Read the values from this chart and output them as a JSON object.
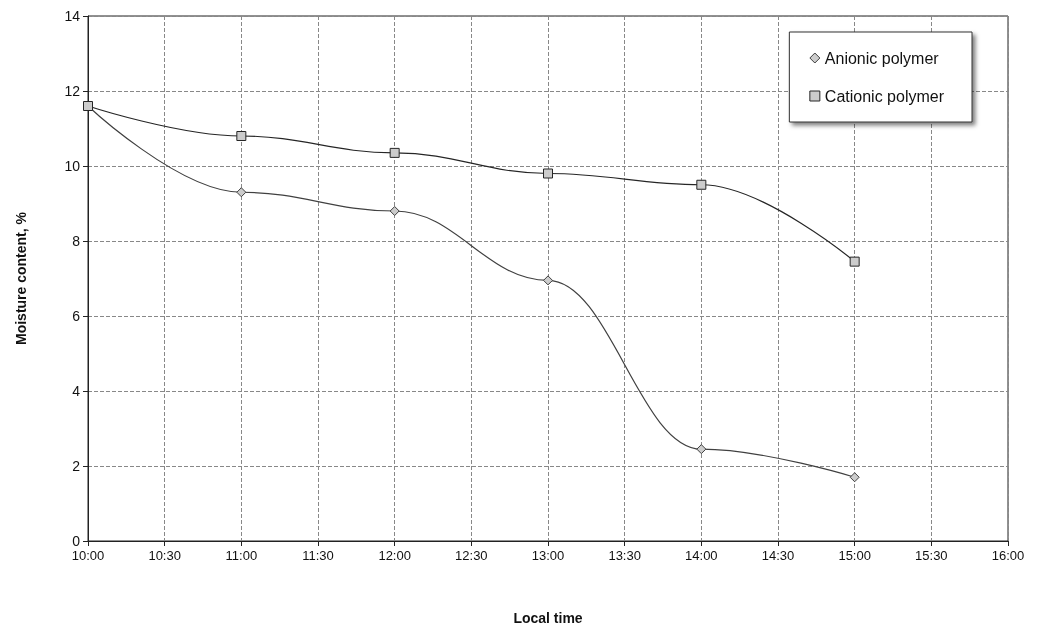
{
  "chart_data": {
    "type": "line",
    "xlabel": "Local time",
    "ylabel": "Moisture content, %",
    "x": [
      10,
      11,
      12,
      13,
      14,
      15
    ],
    "series": [
      {
        "name": "Anionic polymer",
        "color": "#404040",
        "marker": "diamond",
        "values": [
          11.6,
          9.3,
          8.8,
          6.95,
          2.45,
          1.7
        ]
      },
      {
        "name": "Cationic polymer",
        "color": "#262626",
        "marker": "square",
        "values": [
          11.6,
          10.8,
          10.35,
          9.8,
          9.5,
          7.45
        ]
      }
    ],
    "xlim": [
      10,
      16
    ],
    "xticks": [
      {
        "value": 10,
        "label": "10:00"
      },
      {
        "value": 10.5,
        "label": "10:30"
      },
      {
        "value": 11,
        "label": "11:00"
      },
      {
        "value": 11.5,
        "label": "11:30"
      },
      {
        "value": 12,
        "label": "12:00"
      },
      {
        "value": 12.5,
        "label": "12:30"
      },
      {
        "value": 13,
        "label": "13:00"
      },
      {
        "value": 13.5,
        "label": "13:30"
      },
      {
        "value": 14,
        "label": "14:00"
      },
      {
        "value": 14.5,
        "label": "14:30"
      },
      {
        "value": 15,
        "label": "15:00"
      },
      {
        "value": 15.5,
        "label": "15:30"
      },
      {
        "value": 16,
        "label": "16:00"
      }
    ],
    "ylim": [
      0,
      14
    ],
    "yticks": [
      0,
      2,
      4,
      6,
      8,
      10,
      12,
      14
    ],
    "grid": true,
    "legend": "top right",
    "line_style": "solid"
  }
}
